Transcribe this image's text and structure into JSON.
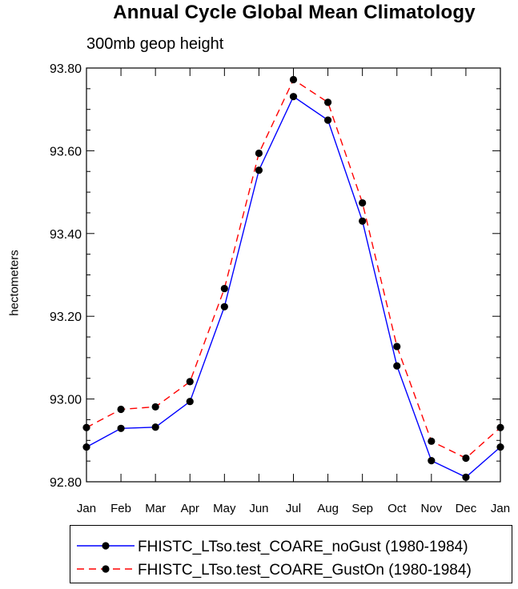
{
  "chart_data": {
    "type": "line",
    "title": "Annual Cycle Global Mean Climatology",
    "subtitle": "300mb geop height",
    "xlabel": "",
    "ylabel": "hectometers",
    "categories": [
      "Jan",
      "Feb",
      "Mar",
      "Apr",
      "May",
      "Jun",
      "Jul",
      "Aug",
      "Sep",
      "Oct",
      "Nov",
      "Dec",
      "Jan"
    ],
    "ylim": [
      92.8,
      93.8
    ],
    "yticks": [
      "92.80",
      "93.00",
      "93.20",
      "93.40",
      "93.60",
      "93.80"
    ],
    "series": [
      {
        "name": "FHISTC_LTso.test_COARE_noGust (1980-1984)",
        "color": "#0000ff",
        "dash": "solid",
        "values": [
          92.884,
          92.929,
          92.932,
          92.994,
          93.223,
          93.553,
          93.731,
          93.674,
          93.43,
          93.08,
          92.851,
          92.811,
          92.884
        ]
      },
      {
        "name": "FHISTC_LTso.test_COARE_GustOn (1980-1984)",
        "color": "#ff0000",
        "dash": "dashed",
        "values": [
          92.931,
          92.975,
          92.981,
          93.042,
          93.267,
          93.594,
          93.772,
          93.717,
          93.474,
          93.127,
          92.898,
          92.857,
          92.931
        ]
      }
    ]
  }
}
